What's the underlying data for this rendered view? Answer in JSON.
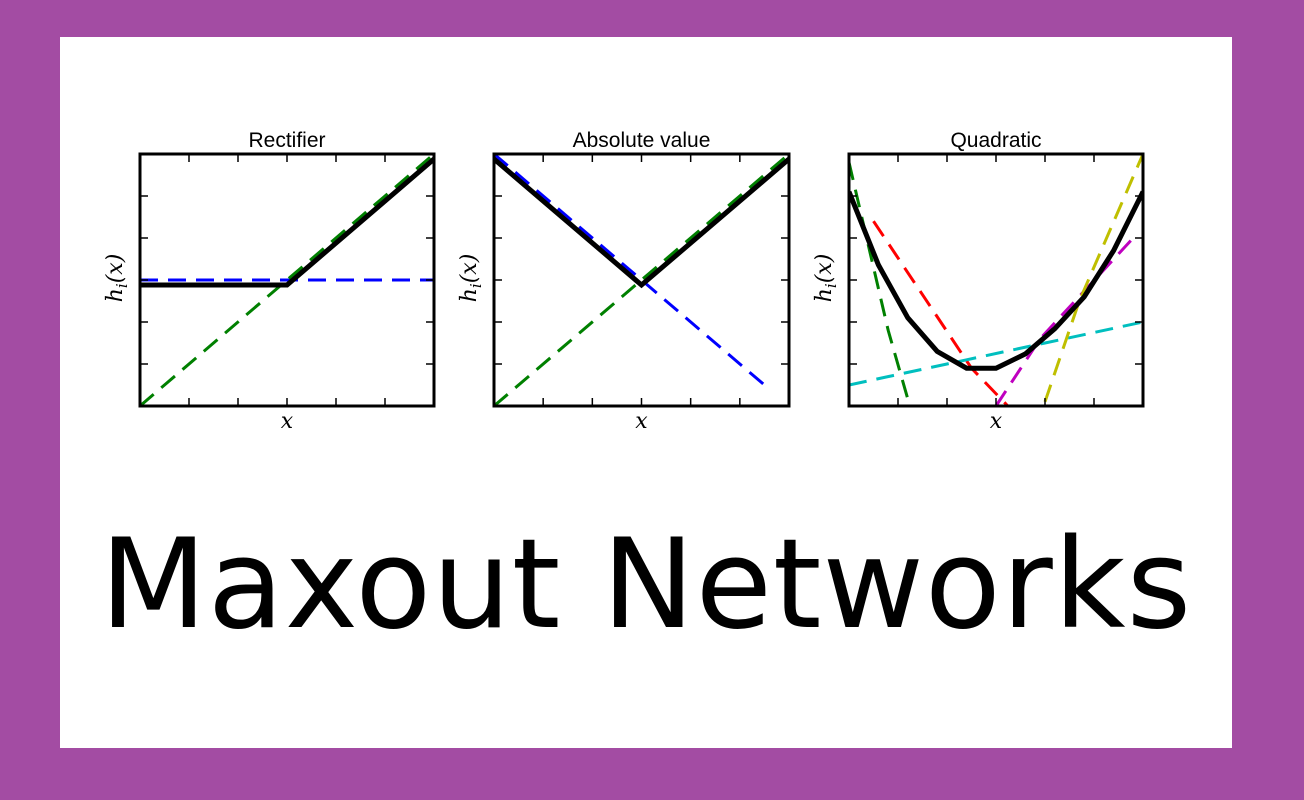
{
  "page": {
    "frame_color": "#a34ca3",
    "card_color": "#ffffff",
    "title": "Maxout Networks"
  },
  "chart_data": [
    {
      "type": "line",
      "title": "Rectifier",
      "xlabel": "x",
      "ylabel": "h_i(x)",
      "xlim": [
        -1.5,
        1.5
      ],
      "ylim": [
        -1.5,
        1.5
      ],
      "grid": false,
      "series": [
        {
          "color": "#0000ff",
          "style": "dashed",
          "x": [
            -1.5,
            1.5
          ],
          "y": [
            0,
            0
          ]
        },
        {
          "color": "#008000",
          "style": "dashed",
          "x": [
            -1.5,
            1.5
          ],
          "y": [
            -1.5,
            1.5
          ]
        },
        {
          "color": "#000000",
          "style": "solid",
          "role": "maxout",
          "x": [
            -1.5,
            0,
            1.5
          ],
          "y": [
            -0.06,
            -0.06,
            1.44
          ]
        }
      ]
    },
    {
      "type": "line",
      "title": "Absolute value",
      "xlabel": "x",
      "ylabel": "h_i(x)",
      "xlim": [
        -1.5,
        1.5
      ],
      "ylim": [
        -1.5,
        1.5
      ],
      "grid": false,
      "series": [
        {
          "color": "#0000ff",
          "style": "dashed",
          "x": [
            -1.5,
            1.28
          ],
          "y": [
            1.5,
            -1.28
          ]
        },
        {
          "color": "#008000",
          "style": "dashed",
          "x": [
            -1.5,
            1.5
          ],
          "y": [
            -1.5,
            1.5
          ]
        },
        {
          "color": "#000000",
          "style": "solid",
          "role": "maxout",
          "x": [
            -1.5,
            0,
            1.5
          ],
          "y": [
            1.44,
            -0.06,
            1.44
          ]
        }
      ]
    },
    {
      "type": "line",
      "title": "Quadratic",
      "xlabel": "x",
      "ylabel": "h_i(x)",
      "xlim": [
        -1.5,
        1.5
      ],
      "ylim": [
        -1.5,
        1.5
      ],
      "grid": false,
      "series": [
        {
          "color": "#008000",
          "style": "dashed",
          "x": [
            -1.5,
            -1.1,
            -0.88
          ],
          "y": [
            1.4,
            -0.6,
            -1.5
          ]
        },
        {
          "color": "#ff0000",
          "style": "dashed",
          "x": [
            -1.25,
            -0.25,
            0.12
          ],
          "y": [
            0.7,
            -1.05,
            -1.5
          ]
        },
        {
          "color": "#00bfbf",
          "style": "dashed",
          "x": [
            -1.5,
            -0.3,
            0.5,
            1.5
          ],
          "y": [
            -1.25,
            -0.95,
            -0.75,
            -0.5
          ]
        },
        {
          "color": "#bf00bf",
          "style": "dashed",
          "x": [
            0.0,
            0.45,
            1.4
          ],
          "y": [
            -1.5,
            -0.7,
            0.5
          ]
        },
        {
          "color": "#bfbf00",
          "style": "dashed",
          "x": [
            0.5,
            0.85,
            1.5
          ],
          "y": [
            -1.45,
            -0.25,
            1.5
          ]
        },
        {
          "color": "#000000",
          "style": "solid",
          "role": "maxout",
          "x": [
            -1.5,
            -1.2,
            -0.9,
            -0.6,
            -0.3,
            0.0,
            0.3,
            0.6,
            0.9,
            1.2,
            1.5
          ],
          "y": [
            1.05,
            0.18,
            -0.45,
            -0.85,
            -1.05,
            -1.05,
            -0.88,
            -0.58,
            -0.2,
            0.35,
            1.05
          ]
        }
      ]
    }
  ]
}
